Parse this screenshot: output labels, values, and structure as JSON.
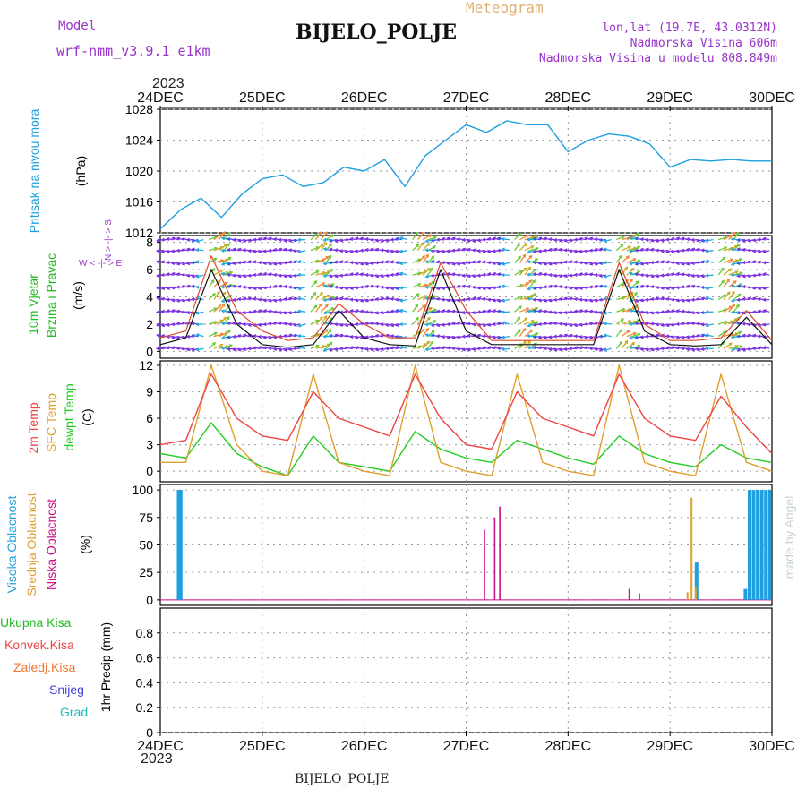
{
  "header": {
    "model_label": "Model",
    "model_name": "wrf-nmm_v3.9.1  e1km",
    "title": "BIJELO_POLJE",
    "meteogram_label": "Meteogram",
    "lonlat": "lon,lat (19.7E, 43.0312N)",
    "elevation": "Nadmorska Visina 606m",
    "model_elevation": "Nadmorska Visina u modelu 808.849m",
    "year_top": "2023",
    "year_bottom": "2023",
    "footer_station": "BIJELO_POLJE",
    "watermark": "made by Angel"
  },
  "colors": {
    "pressure": "#1f9fe0",
    "wind_label": "#22bb22",
    "temp2m": "#ee4444",
    "sfc": "#e0a030",
    "dew": "#22cc22",
    "cloud_high": "#1f9fe0",
    "cloud_mid": "#e0a030",
    "cloud_low": "#cc1188",
    "purple": "#9933cc",
    "grid": "#999999"
  },
  "axis_labels": {
    "pressure": [
      "Pritisak na nivou mora",
      "(hPa)"
    ],
    "wind": [
      "10m Vjetar",
      "Brzina i Pravac",
      "(m/s)"
    ],
    "temp": [
      "2m Temp",
      "SFC Temp",
      "dewpt Temp",
      "(C)"
    ],
    "cloud": [
      "Visoka Oblacnost",
      "Srednja Oblacnost",
      "Niska Oblacnost",
      "(%)"
    ],
    "precip": [
      "1hr Precip (mm)"
    ],
    "wind_compass": [
      "N",
      "W",
      "E",
      "S"
    ]
  },
  "precip_legend": [
    {
      "label": "Ukupna  Kisa",
      "color": "#22bb22"
    },
    {
      "label": "Konvek.Kisa",
      "color": "#ee4444"
    },
    {
      "label": "Zaledj.Kisa",
      "color": "#ee7733"
    },
    {
      "label": "Snijeg",
      "color": "#4444dd"
    },
    {
      "label": "Grad",
      "color": "#22bbbb"
    }
  ],
  "chart_data": [
    {
      "type": "line",
      "panel": "pressure",
      "x_labels": [
        "24DEC",
        "25DEC",
        "26DEC",
        "27DEC",
        "28DEC",
        "29DEC",
        "30DEC"
      ],
      "x": [
        0,
        0.2,
        0.4,
        0.6,
        0.8,
        1,
        1.2,
        1.4,
        1.6,
        1.8,
        2,
        2.2,
        2.4,
        2.6,
        2.8,
        3,
        3.2,
        3.4,
        3.6,
        3.8,
        4,
        4.2,
        4.4,
        4.6,
        4.8,
        5,
        5.2,
        5.4,
        5.6,
        5.8,
        6
      ],
      "series": [
        {
          "values": [
            1012.5,
            1015,
            1016.5,
            1014,
            1017,
            1019,
            1019.5,
            1018,
            1018.5,
            1020.5,
            1020,
            1021.5,
            1018,
            1022,
            1024,
            1026,
            1025,
            1026.5,
            1026,
            1026,
            1022.5,
            1024,
            1024.8,
            1024.5,
            1023.5,
            1020.5,
            1021.5,
            1021.3,
            1021.5,
            1021.3,
            1021.3
          ]
        }
      ],
      "yticks": [
        1012,
        1016,
        1020,
        1024,
        1028
      ],
      "ylim": [
        1012,
        1028
      ]
    },
    {
      "type": "line",
      "panel": "wind",
      "x": [
        0,
        0.25,
        0.5,
        0.75,
        1,
        1.25,
        1.5,
        1.75,
        2,
        2.25,
        2.5,
        2.75,
        3,
        3.25,
        3.5,
        3.75,
        4,
        4.25,
        4.5,
        4.75,
        5,
        5.25,
        5.5,
        5.75,
        6
      ],
      "series": [
        {
          "values": [
            0.5,
            1,
            6,
            2,
            0.5,
            0.3,
            0.5,
            3,
            1,
            0.5,
            0.4,
            6,
            1.5,
            0.5,
            0.5,
            0.5,
            0.5,
            0.5,
            6,
            1.5,
            0.5,
            0.4,
            0.5,
            2.5,
            0.5
          ]
        },
        {
          "values": [
            1,
            1.5,
            7,
            3,
            1.5,
            0.8,
            1,
            3.5,
            2,
            1,
            1,
            6.5,
            3,
            0.8,
            0.8,
            0.8,
            0.8,
            0.8,
            6.5,
            2,
            0.8,
            0.8,
            1,
            3,
            0.8
          ]
        }
      ],
      "yticks": [
        0,
        2,
        4,
        6,
        8
      ],
      "ylim": [
        -0.5,
        8.5
      ]
    },
    {
      "type": "line",
      "panel": "temperature",
      "x": [
        0,
        0.25,
        0.5,
        0.75,
        1,
        1.25,
        1.5,
        1.75,
        2,
        2.25,
        2.5,
        2.75,
        3,
        3.25,
        3.5,
        3.75,
        4,
        4.25,
        4.5,
        4.75,
        5,
        5.25,
        5.5,
        5.75,
        6
      ],
      "series": [
        {
          "values": [
            3,
            3.5,
            11,
            6,
            4,
            3.5,
            9,
            6,
            5,
            4,
            11,
            6,
            3,
            2.5,
            9,
            6,
            5,
            4,
            11,
            6,
            4,
            3.5,
            8.5,
            5,
            2
          ]
        },
        {
          "values": [
            1,
            1,
            12,
            3,
            0,
            -0.5,
            11,
            1,
            0,
            -0.5,
            12,
            1,
            0,
            -0.5,
            11,
            1,
            0,
            -0.5,
            12,
            1,
            0,
            -0.5,
            11,
            1,
            0
          ]
        },
        {
          "values": [
            2,
            1.5,
            5.5,
            2,
            0.5,
            -0.5,
            4,
            1,
            0.5,
            0,
            4.5,
            2.5,
            1.5,
            1,
            3.5,
            2.5,
            1.5,
            0.8,
            4,
            2,
            1,
            0.5,
            3,
            1.5,
            1
          ]
        }
      ],
      "yticks": [
        0,
        3,
        6,
        9,
        12
      ],
      "ylim": [
        -1.2,
        12.5
      ]
    },
    {
      "type": "bar",
      "panel": "cloud",
      "x": [
        0.18,
        0.19,
        0.2,
        3.18,
        3.28,
        3.33,
        4.6,
        4.7,
        5.18,
        5.22,
        5.26,
        5.74,
        5.78,
        5.82,
        5.86,
        5.9,
        5.94,
        5.98
      ],
      "series": [
        {
          "values": [
            100,
            100,
            100,
            0,
            0,
            0,
            0,
            0,
            0,
            0,
            34,
            10,
            100,
            100,
            100,
            100,
            100,
            100
          ]
        },
        {
          "values": [
            0,
            0,
            0,
            0,
            0,
            0,
            0,
            0,
            7,
            93,
            12,
            0,
            0,
            0,
            0,
            0,
            0,
            0
          ]
        },
        {
          "values": [
            0,
            0,
            0,
            64,
            75,
            85,
            10,
            6,
            0,
            0,
            0,
            0,
            0,
            0,
            0,
            0,
            0,
            0
          ]
        }
      ],
      "yticks": [
        0,
        25,
        50,
        75,
        100
      ],
      "ylim": [
        -5,
        105
      ]
    },
    {
      "type": "bar",
      "panel": "precip",
      "x_labels": [
        "24DEC",
        "25DEC",
        "26DEC",
        "27DEC",
        "28DEC",
        "29DEC",
        "30DEC"
      ],
      "series": [
        {
          "values": []
        }
      ],
      "yticks": [
        0,
        0.2,
        0.4,
        0.6,
        0.8
      ],
      "ylim": [
        0,
        1
      ]
    }
  ]
}
